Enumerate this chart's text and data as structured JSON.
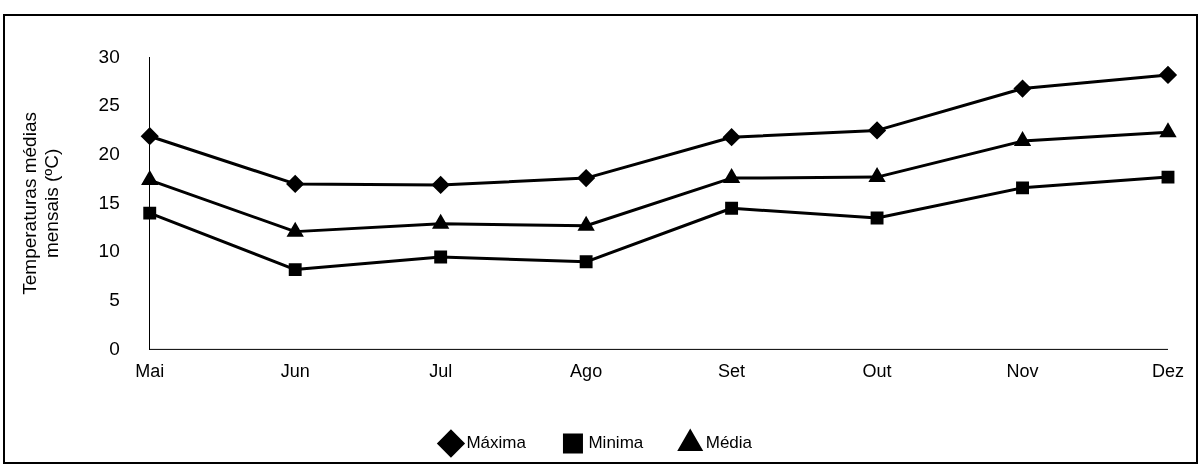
{
  "chart_data": {
    "type": "line",
    "ylabel": "Temperaturas médias mensais (ºC)",
    "categories": [
      "Mai",
      "Jun",
      "Jul",
      "Ago",
      "Set",
      "Out",
      "Nov",
      "Dez"
    ],
    "series": [
      {
        "name": "Máxima",
        "color": "#000000",
        "marker": "diamond",
        "values": [
          21.9,
          17.0,
          16.9,
          17.6,
          21.8,
          22.5,
          26.8,
          28.2
        ]
      },
      {
        "name": "Minima",
        "color": "#000000",
        "marker": "square",
        "values": [
          14.0,
          8.2,
          9.5,
          9.0,
          14.5,
          13.5,
          16.6,
          17.7
        ]
      },
      {
        "name": "Média",
        "color": "#000000",
        "marker": "triangle",
        "values": [
          17.4,
          12.1,
          12.9,
          12.7,
          17.6,
          17.7,
          21.4,
          22.3
        ]
      }
    ],
    "ylim": [
      0,
      30
    ],
    "yticks": [
      0,
      5,
      10,
      15,
      20,
      25,
      30
    ],
    "grid": false,
    "legend": "bottom",
    "line_style": "solid"
  }
}
